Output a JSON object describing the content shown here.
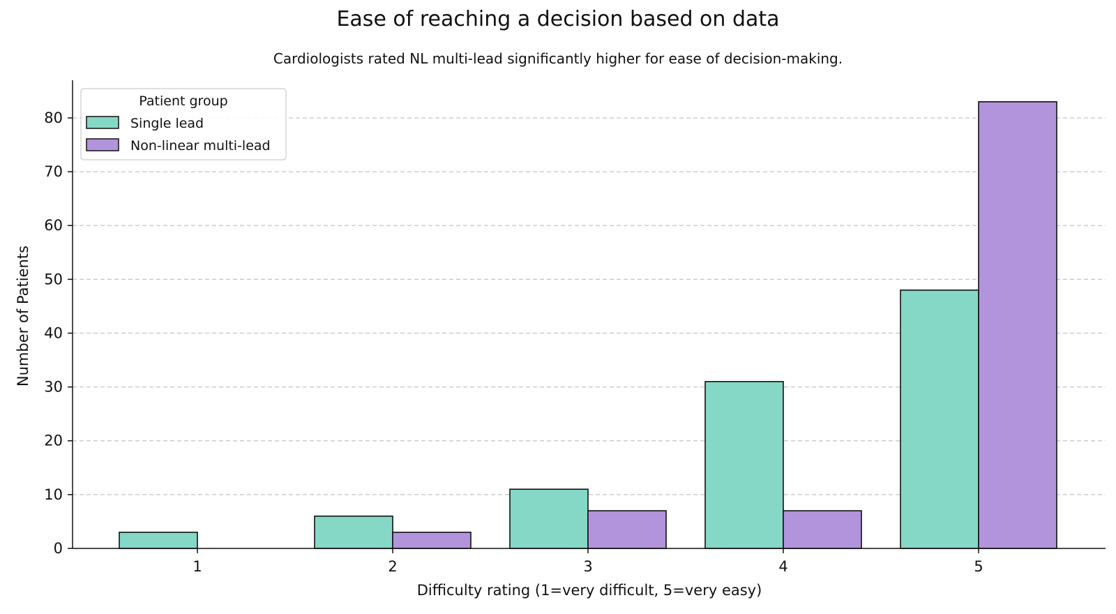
{
  "chart_data": {
    "type": "bar",
    "title": "Ease of reaching a decision based on data",
    "subtitle": "Cardiologists rated NL multi-lead significantly higher for ease of decision-making.",
    "xlabel": "Difficulty rating (1=very difficult, 5=very easy)",
    "ylabel": "Number of Patients",
    "categories": [
      "1",
      "2",
      "3",
      "4",
      "5"
    ],
    "series": [
      {
        "name": "Single lead",
        "color": "#86d8c6",
        "values": [
          3,
          6,
          11,
          31,
          48
        ]
      },
      {
        "name": "Non-linear multi-lead",
        "color": "#b294dc",
        "values": [
          0,
          3,
          7,
          7,
          83
        ]
      }
    ],
    "ylim": [
      0,
      87
    ],
    "yticks": [
      0,
      10,
      20,
      30,
      40,
      50,
      60,
      70,
      80
    ],
    "grid": "horizontal dashed",
    "legend": {
      "title": "Patient group",
      "placement": "top-left"
    }
  }
}
